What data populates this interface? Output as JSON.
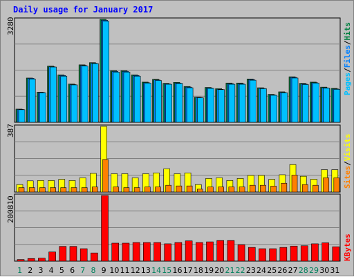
{
  "title": "Daily usage for January 2017",
  "colors": {
    "background": "#c0c0c0",
    "panel": "#c0c0c0",
    "title": "#0000ff",
    "pages": "#00c0ff",
    "files": "#0080ff",
    "hits": "#008040",
    "visits": "#ffff00",
    "sites": "#ff8000",
    "kbytes": "#ff0000",
    "weekend_label": "#00805c",
    "weekday_label": "#000000"
  },
  "chart_data": [
    {
      "type": "bar",
      "panel": "top",
      "ymax_label": "3280",
      "ylim": [
        0,
        3280
      ],
      "categories": [
        "1",
        "2",
        "3",
        "4",
        "5",
        "6",
        "7",
        "8",
        "9",
        "10",
        "11",
        "12",
        "13",
        "14",
        "15",
        "16",
        "17",
        "18",
        "19",
        "20",
        "21",
        "22",
        "23",
        "24",
        "25",
        "26",
        "27",
        "28",
        "29",
        "30",
        "31"
      ],
      "legend": [
        "Pages",
        "/",
        "Files",
        "/",
        "Hits"
      ],
      "series": [
        {
          "name": "Hits",
          "color": "#008040",
          "values": [
            420,
            1410,
            960,
            1790,
            1510,
            1220,
            1830,
            1900,
            3280,
            1640,
            1640,
            1510,
            1280,
            1370,
            1240,
            1270,
            1140,
            800,
            1110,
            1070,
            1250,
            1250,
            1380,
            1100,
            890,
            970,
            1450,
            1240,
            1280,
            1120,
            1080
          ]
        },
        {
          "name": "Files",
          "color": "#0080ff",
          "values": [
            410,
            1400,
            950,
            1770,
            1490,
            1200,
            1810,
            1880,
            3250,
            1620,
            1620,
            1490,
            1260,
            1350,
            1220,
            1250,
            1120,
            790,
            1090,
            1050,
            1230,
            1230,
            1360,
            1080,
            870,
            950,
            1430,
            1220,
            1260,
            1100,
            1060
          ]
        },
        {
          "name": "Pages",
          "color": "#00c0ff",
          "values": [
            400,
            1380,
            940,
            1760,
            1470,
            1190,
            1790,
            1870,
            3220,
            1600,
            1600,
            1470,
            1250,
            1330,
            1210,
            1240,
            1100,
            780,
            1080,
            1040,
            1210,
            1210,
            1340,
            1070,
            860,
            940,
            1410,
            1200,
            1250,
            1090,
            1050
          ]
        }
      ]
    },
    {
      "type": "bar",
      "panel": "middle",
      "ymax_label": "387",
      "ylim": [
        0,
        387
      ],
      "categories": [
        "1",
        "2",
        "3",
        "4",
        "5",
        "6",
        "7",
        "8",
        "9",
        "10",
        "11",
        "12",
        "13",
        "14",
        "15",
        "16",
        "17",
        "18",
        "19",
        "20",
        "21",
        "22",
        "23",
        "24",
        "25",
        "26",
        "27",
        "28",
        "29",
        "30",
        "31"
      ],
      "legend": [
        "Sites",
        "/",
        "Visits"
      ],
      "series": [
        {
          "name": "Visits",
          "color": "#ffff00",
          "values": [
            44,
            66,
            68,
            68,
            75,
            68,
            84,
            110,
            387,
            108,
            108,
            84,
            108,
            113,
            137,
            108,
            113,
            44,
            80,
            84,
            68,
            80,
            98,
            98,
            75,
            102,
            162,
            93,
            76,
            132,
            132
          ]
        },
        {
          "name": "Sites",
          "color": "#ff8000",
          "values": [
            26,
            26,
            26,
            26,
            26,
            26,
            26,
            30,
            192,
            30,
            26,
            26,
            30,
            30,
            40,
            36,
            36,
            17,
            30,
            30,
            30,
            30,
            40,
            40,
            35,
            52,
            100,
            44,
            40,
            84,
            84
          ]
        }
      ]
    },
    {
      "type": "bar",
      "panel": "bottom",
      "ymax_label": "200810",
      "ylim": [
        0,
        200810
      ],
      "categories": [
        "1",
        "2",
        "3",
        "4",
        "5",
        "6",
        "7",
        "8",
        "9",
        "10",
        "11",
        "12",
        "13",
        "14",
        "15",
        "16",
        "17",
        "18",
        "19",
        "20",
        "21",
        "22",
        "23",
        "24",
        "25",
        "26",
        "27",
        "28",
        "29",
        "30",
        "31"
      ],
      "legend": [
        "KBytes"
      ],
      "series": [
        {
          "name": "KBytes",
          "color": "#ff0000",
          "values": [
            5000,
            8000,
            9000,
            28000,
            45000,
            45000,
            38000,
            25000,
            200810,
            55000,
            55000,
            57000,
            57000,
            57000,
            53000,
            57000,
            62000,
            57000,
            59000,
            63000,
            63000,
            50000,
            42000,
            38000,
            38000,
            42000,
            46000,
            47000,
            53000,
            56000,
            44000
          ]
        }
      ]
    }
  ],
  "x_labels": [
    "1",
    "2",
    "3",
    "4",
    "5",
    "6",
    "7",
    "8",
    "9",
    "10",
    "11",
    "12",
    "13",
    "14",
    "15",
    "16",
    "17",
    "18",
    "19",
    "20",
    "21",
    "22",
    "23",
    "24",
    "25",
    "26",
    "27",
    "28",
    "29",
    "30",
    "31"
  ],
  "weekend_days": [
    "1",
    "7",
    "8",
    "14",
    "15",
    "21",
    "22",
    "28",
    "29"
  ]
}
